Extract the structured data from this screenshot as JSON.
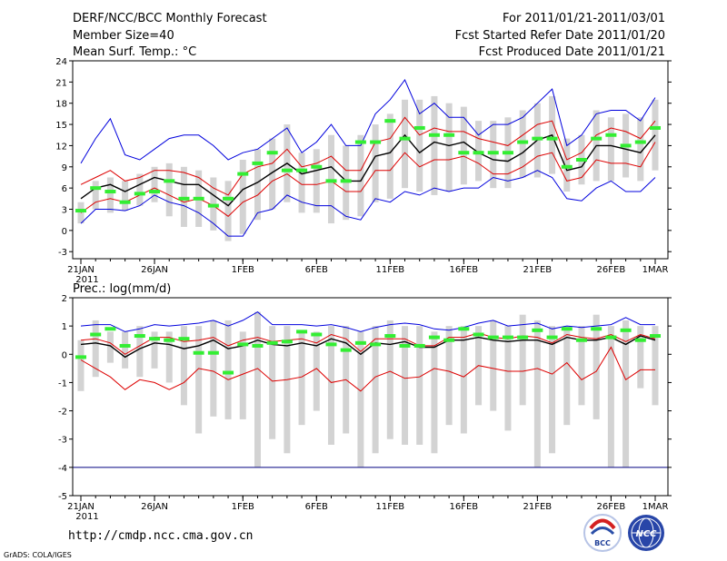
{
  "header": {
    "left": [
      "DERF/NCC/BCC Monthly Forecast",
      "Member Size=40",
      "Mean Surf. Temp.: °C"
    ],
    "right": [
      "For 2011/01/21-2011/03/01",
      "Fcst Started Refer Date 2011/01/20",
      "Fcst Produced Date 2011/01/21"
    ]
  },
  "footer": {
    "url": "http://cmdp.ncc.cma.gov.cn",
    "credit": "GrADS: COLA/IGES",
    "logo_bcc": "BCC",
    "logo_ncc": "NCC"
  },
  "colors": {
    "envelope": "#0000dd",
    "spread": "#dd0000",
    "mean": "#000000",
    "observed": "#33ee33",
    "bar": "#d3d3d3",
    "floor": "#000080"
  },
  "chart_data": [
    {
      "type": "line",
      "title": "Mean Surf. Temp.: °C",
      "x_tick_labels": [
        "21JAN",
        "26JAN",
        "1FEB",
        "6FEB",
        "11FEB",
        "16FEB",
        "21FEB",
        "26FEB",
        "1MAR"
      ],
      "x_tick_days": [
        0,
        5,
        11,
        16,
        21,
        26,
        31,
        36,
        39
      ],
      "year_label": "2011",
      "ylim": [
        -4,
        24
      ],
      "y_ticks": [
        -3,
        0,
        3,
        6,
        9,
        12,
        15,
        18,
        21,
        24
      ],
      "bars": {
        "low": [
          1.0,
          3.0,
          2.5,
          2.8,
          3.5,
          4.0,
          2.0,
          0.5,
          0.5,
          0.0,
          -1.5,
          -0.5,
          1.5,
          3.0,
          4.0,
          2.5,
          2.5,
          1.0,
          1.5,
          2.0,
          4.0,
          4.5,
          6.0,
          5.5,
          5.0,
          5.5,
          6.5,
          7.0,
          6.0,
          6.0,
          7.5,
          7.5,
          8.0,
          5.5,
          6.5,
          7.0,
          7.0,
          7.5,
          7.0,
          8.5
        ],
        "high": [
          4.0,
          7.0,
          7.5,
          7.0,
          8.0,
          9.0,
          9.5,
          9.0,
          8.5,
          7.5,
          7.0,
          10.0,
          11.5,
          13.0,
          15.0,
          11.0,
          11.5,
          13.5,
          12.0,
          13.5,
          15.0,
          16.5,
          18.5,
          18.5,
          19.0,
          18.0,
          17.5,
          15.5,
          15.5,
          16.0,
          17.0,
          18.0,
          19.0,
          13.0,
          13.5,
          17.0,
          16.0,
          16.5,
          16.0,
          18.5
        ]
      },
      "series": [
        {
          "name": "max",
          "values": [
            9.5,
            13.0,
            15.8,
            10.7,
            10.0,
            11.5,
            13.0,
            13.5,
            13.5,
            12.0,
            10.0,
            11.0,
            11.5,
            13.0,
            14.5,
            11.0,
            12.5,
            15.0,
            12.0,
            12.0,
            16.5,
            18.5,
            21.3,
            16.5,
            18.0,
            16.0,
            16.0,
            13.5,
            15.0,
            15.0,
            16.0,
            18.0,
            20.0,
            12.0,
            13.5,
            16.5,
            17.0,
            17.0,
            15.5,
            18.8
          ]
        },
        {
          "name": "upper",
          "values": [
            6.5,
            7.5,
            8.5,
            7.0,
            7.5,
            8.5,
            8.5,
            8.2,
            7.5,
            6.0,
            5.0,
            8.0,
            9.0,
            9.5,
            11.5,
            9.0,
            9.5,
            10.5,
            8.5,
            8.5,
            12.5,
            13.0,
            16.0,
            13.5,
            14.5,
            14.0,
            14.0,
            13.0,
            12.5,
            12.0,
            13.5,
            15.0,
            15.5,
            10.0,
            11.0,
            13.5,
            14.5,
            14.0,
            13.0,
            15.5
          ]
        },
        {
          "name": "mean",
          "values": [
            4.5,
            6.0,
            6.5,
            5.5,
            6.5,
            7.5,
            7.0,
            6.5,
            6.5,
            5.0,
            3.5,
            5.8,
            6.8,
            8.2,
            9.5,
            8.0,
            8.5,
            9.0,
            7.0,
            7.0,
            10.5,
            11.0,
            13.5,
            11.0,
            12.5,
            12.0,
            12.5,
            11.0,
            10.0,
            9.8,
            11.0,
            12.8,
            13.5,
            8.5,
            9.0,
            12.0,
            12.0,
            11.5,
            11.0,
            13.5
          ]
        },
        {
          "name": "lower",
          "values": [
            2.5,
            4.0,
            4.5,
            4.0,
            5.0,
            6.0,
            5.0,
            4.0,
            4.5,
            3.5,
            2.0,
            4.0,
            5.0,
            7.0,
            8.0,
            6.5,
            6.5,
            7.0,
            5.5,
            5.5,
            8.5,
            8.5,
            11.0,
            9.0,
            10.0,
            10.0,
            10.5,
            9.5,
            8.0,
            8.0,
            9.0,
            10.5,
            11.0,
            7.0,
            7.5,
            10.0,
            9.5,
            9.5,
            9.0,
            12.5
          ]
        },
        {
          "name": "min",
          "values": [
            1.0,
            3.0,
            3.0,
            2.8,
            3.5,
            5.0,
            4.0,
            3.5,
            2.5,
            1.0,
            -0.8,
            -0.8,
            2.5,
            3.0,
            5.0,
            4.0,
            3.5,
            3.5,
            2.0,
            1.5,
            4.5,
            4.0,
            5.5,
            5.0,
            6.0,
            5.5,
            6.0,
            6.0,
            7.5,
            7.0,
            7.5,
            8.5,
            7.5,
            4.5,
            4.2,
            6.0,
            7.0,
            5.5,
            5.5,
            7.5
          ]
        }
      ],
      "observed": [
        2.8,
        6.0,
        5.5,
        4.0,
        5.2,
        5.5,
        7.0,
        4.5,
        4.5,
        3.5,
        4.5,
        8.0,
        9.5,
        11.0,
        8.5,
        8.5,
        9.0,
        7.0,
        7.0,
        12.5,
        12.5,
        15.5,
        13.0,
        14.5,
        13.5,
        13.5,
        11.0,
        11.0,
        11.0,
        11.0,
        12.5,
        13.0,
        13.0,
        9.0,
        10.0,
        13.0,
        13.5,
        12.0,
        12.5,
        14.5
      ]
    },
    {
      "type": "line",
      "title": "Prec.: log(mm/d)",
      "x_tick_labels": [
        "21JAN",
        "26JAN",
        "1FEB",
        "6FEB",
        "11FEB",
        "16FEB",
        "21FEB",
        "26FEB",
        "1MAR"
      ],
      "x_tick_days": [
        0,
        5,
        11,
        16,
        21,
        26,
        31,
        36,
        39
      ],
      "year_label": "2011",
      "ylim": [
        -5,
        2
      ],
      "y_ticks": [
        -5,
        -4,
        -3,
        -2,
        -1,
        0,
        1,
        2
      ],
      "floor_value": -4,
      "bars": {
        "low": [
          -1.3,
          -0.8,
          -0.3,
          -0.5,
          -0.8,
          -0.5,
          -1.0,
          -1.8,
          -2.8,
          -2.2,
          -2.3,
          -2.3,
          -4.0,
          -3.0,
          -3.5,
          -2.5,
          -2.0,
          -3.2,
          -2.8,
          -4.0,
          -3.5,
          -3.0,
          -3.2,
          -3.2,
          -3.5,
          -2.5,
          -2.8,
          -1.8,
          -2.0,
          -2.7,
          -1.8,
          -4.0,
          -3.5,
          -2.5,
          -1.8,
          -2.3,
          -4.0,
          -4.0,
          -1.2,
          -1.8
        ],
        "high": [
          0.5,
          1.2,
          0.8,
          0.8,
          1.0,
          0.8,
          0.8,
          1.0,
          1.0,
          1.2,
          1.2,
          0.8,
          1.5,
          1.0,
          1.0,
          0.8,
          0.8,
          1.0,
          1.0,
          0.8,
          1.0,
          1.2,
          1.0,
          1.0,
          0.8,
          1.0,
          1.0,
          1.0,
          1.2,
          1.0,
          1.4,
          1.2,
          1.0,
          1.0,
          1.0,
          1.4,
          1.0,
          1.2,
          1.0,
          1.0
        ]
      },
      "series": [
        {
          "name": "max",
          "values": [
            1.0,
            1.05,
            1.05,
            0.8,
            0.9,
            1.05,
            1.0,
            1.05,
            1.1,
            1.2,
            1.0,
            1.2,
            1.5,
            1.05,
            1.05,
            1.05,
            1.0,
            1.05,
            0.95,
            0.8,
            0.95,
            1.05,
            1.1,
            1.05,
            0.9,
            0.85,
            0.95,
            1.1,
            1.2,
            1.0,
            1.05,
            1.1,
            0.9,
            1.0,
            0.95,
            1.0,
            1.05,
            1.3,
            1.05,
            1.05
          ]
        },
        {
          "name": "upper",
          "values": [
            0.5,
            0.55,
            0.4,
            0.0,
            0.3,
            0.6,
            0.6,
            0.45,
            0.5,
            0.6,
            0.3,
            0.5,
            0.6,
            0.45,
            0.5,
            0.55,
            0.4,
            0.7,
            0.55,
            0.1,
            0.55,
            0.55,
            0.55,
            0.3,
            0.3,
            0.6,
            0.6,
            0.75,
            0.6,
            0.55,
            0.65,
            0.6,
            0.4,
            0.7,
            0.6,
            0.55,
            0.7,
            0.45,
            0.7,
            0.55
          ]
        },
        {
          "name": "mean",
          "values": [
            0.35,
            0.4,
            0.3,
            -0.1,
            0.2,
            0.4,
            0.35,
            0.2,
            0.3,
            0.5,
            0.2,
            0.3,
            0.5,
            0.35,
            0.3,
            0.4,
            0.3,
            0.55,
            0.4,
            0.0,
            0.4,
            0.35,
            0.45,
            0.25,
            0.25,
            0.5,
            0.5,
            0.6,
            0.5,
            0.45,
            0.5,
            0.5,
            0.35,
            0.6,
            0.5,
            0.5,
            0.6,
            0.35,
            0.65,
            0.5
          ]
        },
        {
          "name": "lower",
          "values": [
            -0.2,
            -0.5,
            -0.8,
            -1.25,
            -0.9,
            -1.0,
            -1.25,
            -1.0,
            -0.5,
            -0.6,
            -0.9,
            -0.7,
            -0.5,
            -0.95,
            -0.9,
            -0.8,
            -0.5,
            -1.0,
            -0.9,
            -1.3,
            -0.8,
            -0.6,
            -0.85,
            -0.8,
            -0.5,
            -0.6,
            -0.8,
            -0.4,
            -0.5,
            -0.6,
            -0.6,
            -0.5,
            -0.7,
            -0.3,
            -0.9,
            -0.6,
            0.25,
            -0.9,
            -0.55,
            -0.55
          ]
        },
        {
          "name": "min",
          "values": [
            -4.0,
            -4.0,
            -4.0,
            -4.0,
            -4.0,
            -4.0,
            -4.0,
            -4.0,
            -4.0,
            -4.0,
            -4.0,
            -4.0,
            -4.0,
            -4.0,
            -4.0,
            -4.0,
            -4.0,
            -4.0,
            -4.0,
            -4.0,
            -4.0,
            -4.0,
            -4.0,
            -4.0,
            -4.0,
            -4.0,
            -4.0,
            -4.0,
            -4.0,
            -4.0,
            -4.0,
            -4.0,
            -4.0,
            -4.0,
            -4.0,
            -4.0,
            -4.0,
            -4.0,
            -4.0,
            -4.0
          ]
        }
      ],
      "observed": [
        -0.1,
        0.7,
        0.9,
        0.3,
        0.65,
        0.55,
        0.5,
        0.55,
        0.05,
        0.05,
        -0.65,
        0.35,
        0.3,
        0.4,
        0.45,
        0.8,
        0.7,
        0.35,
        0.15,
        0.4,
        0.35,
        0.65,
        0.3,
        0.3,
        0.6,
        0.5,
        0.9,
        0.7,
        0.6,
        0.6,
        0.6,
        0.85,
        0.6,
        0.9,
        0.5,
        0.9,
        0.6,
        0.85,
        0.5,
        0.65
      ]
    }
  ]
}
